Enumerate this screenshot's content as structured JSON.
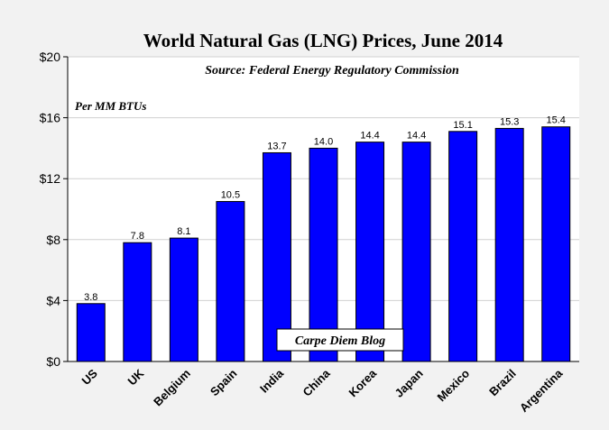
{
  "chart_data": {
    "type": "bar",
    "title": "World Natural Gas (LNG) Prices, June 2014",
    "source": "Source: Federal Energy Regulatory Commission",
    "unit_label": "Per MM BTUs",
    "watermark": "Carpe Diem Blog",
    "categories": [
      "US",
      "UK",
      "Belgium",
      "Spain",
      "India",
      "China",
      "Korea",
      "Japan",
      "Mexico",
      "Brazil",
      "Argentina"
    ],
    "values": [
      3.8,
      7.8,
      8.1,
      10.5,
      13.7,
      14.0,
      14.4,
      14.4,
      15.1,
      15.3,
      15.4
    ],
    "value_labels": [
      "3.8",
      "7.8",
      "8.1",
      "10.5",
      "13.7",
      "14.0",
      "14.4",
      "14.4",
      "15.1",
      "15.3",
      "15.4"
    ],
    "ylim": [
      0,
      20
    ],
    "yticks": [
      0,
      4,
      8,
      12,
      16,
      20
    ],
    "ytick_labels": [
      "$0",
      "$4",
      "$8",
      "$12",
      "$16",
      "$20"
    ],
    "xlabel": "",
    "ylabel": "",
    "grid": true,
    "bar_color": "#0000ff",
    "bar_edge_color": "#000000",
    "plot_background": "#ffffff"
  }
}
